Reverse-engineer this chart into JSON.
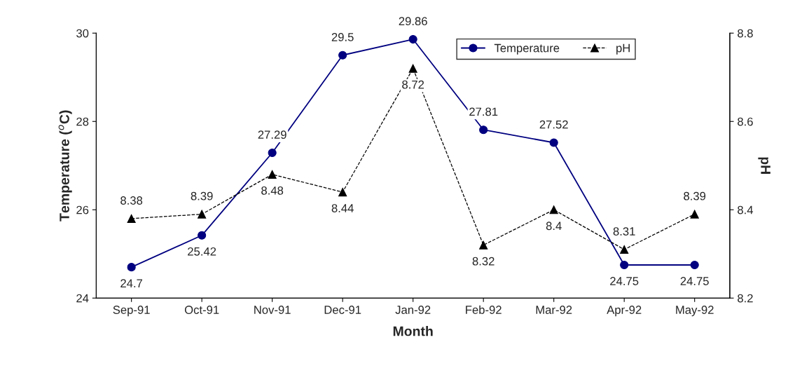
{
  "chart_data": {
    "type": "line",
    "xlabel": "Month",
    "ylabel": "Temperature ($^{o}$C)",
    "y2label": "pH",
    "categories": [
      "Sep-91",
      "Oct-91",
      "Nov-91",
      "Dec-91",
      "Jan-92",
      "Feb-92",
      "Mar-92",
      "Apr-92",
      "May-92"
    ],
    "series": [
      {
        "name": "Temperature",
        "color": "#000080",
        "marker": "circle",
        "line_style": "solid",
        "values": [
          24.7,
          25.42,
          27.29,
          29.5,
          29.86,
          27.81,
          27.52,
          24.75,
          24.75
        ]
      },
      {
        "name": "pH",
        "color": "#000000",
        "marker": "triangle",
        "line_style": "dashed",
        "axis": "y2",
        "values": [
          8.38,
          8.39,
          8.48,
          8.44,
          8.72,
          8.32,
          8.4,
          8.31,
          8.39
        ]
      }
    ],
    "ylim": [
      24,
      30
    ],
    "yticks": [
      24,
      26,
      28,
      30
    ],
    "y2lim": [
      8.2,
      8.8
    ],
    "y2ticks": [
      8.2,
      8.4,
      8.6,
      8.8
    ],
    "data_labels": true,
    "legend": "top right",
    "grid": false
  }
}
